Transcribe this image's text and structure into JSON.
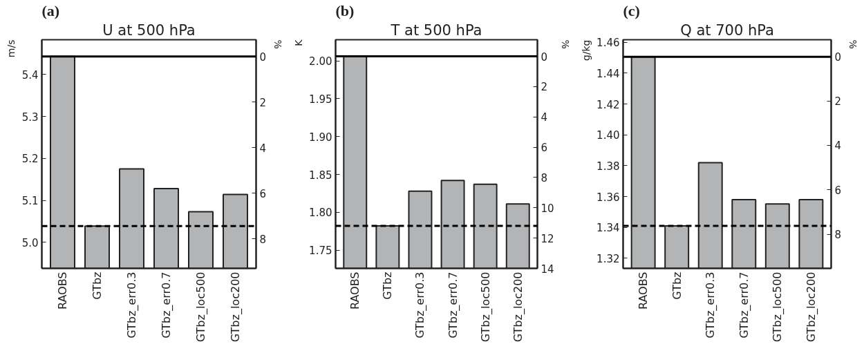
{
  "chart_data": [
    {
      "type": "bar",
      "title": "U at 500 hPa",
      "annotations": [
        "(a)"
      ],
      "ylabel": "m/s",
      "y2label": "%",
      "categories": [
        "RAOBS",
        "GTbz",
        "GTbz_err0.3",
        "GTbz_err0.7",
        "GTbz_loc500",
        "GTbz_loc200"
      ],
      "values": [
        5.443,
        5.039,
        5.175,
        5.128,
        5.073,
        5.114
      ],
      "color": "#b3b4b6",
      "ylim": [
        4.938,
        5.483
      ],
      "yticks": [
        {
          "value": 5.0,
          "label": "5.0"
        },
        5.1,
        5.2,
        5.3,
        5.4
      ],
      "y2lim": [
        9.29,
        -0.73
      ],
      "y2ticks": [
        0,
        2,
        4,
        6,
        8
      ],
      "ref_lines": [
        {
          "axis": "y",
          "value": 5.443,
          "line_style": "solid",
          "color": "#000000"
        },
        {
          "axis": "y",
          "value": 5.039,
          "line_style": "dashed",
          "color": "#000000"
        }
      ],
      "grid": false
    },
    {
      "type": "bar",
      "title": "T at 500 hPa",
      "annotations": [
        "(b)"
      ],
      "ylabel": "K",
      "y2label": "%",
      "categories": [
        "RAOBS",
        "GTbz",
        "GTbz_err0.3",
        "GTbz_err0.7",
        "GTbz_loc500",
        "GTbz_loc200"
      ],
      "values": [
        2.006,
        1.782,
        1.828,
        1.842,
        1.837,
        1.811
      ],
      "color": "#b3b4b6",
      "ylim": [
        1.726,
        2.028
      ],
      "yticks": [
        {
          "value": 1.75,
          "label": "1.75"
        },
        {
          "value": 1.8,
          "label": "1.80"
        },
        {
          "value": 1.85,
          "label": "1.85"
        },
        {
          "value": 1.9,
          "label": "1.90"
        },
        {
          "value": 1.95,
          "label": "1.95"
        },
        {
          "value": 2.0,
          "label": "2.00"
        }
      ],
      "y2lim": [
        14.0,
        -1.1
      ],
      "y2ticks": [
        0,
        2,
        4,
        6,
        8,
        10,
        12,
        14
      ],
      "ref_lines": [
        {
          "axis": "y",
          "value": 2.006,
          "line_style": "solid",
          "color": "#000000"
        },
        {
          "axis": "y",
          "value": 1.782,
          "line_style": "dashed",
          "color": "#000000"
        }
      ],
      "grid": false
    },
    {
      "type": "bar",
      "title": "Q at 700 hPa",
      "annotations": [
        "(c)"
      ],
      "ylabel": "g/kg",
      "y2label": "%",
      "categories": [
        "RAOBS",
        "GTbz",
        "GTbz_err0.3",
        "GTbz_err0.7",
        "GTbz_loc500",
        "GTbz_loc200"
      ],
      "values": [
        1.4506,
        1.341,
        1.382,
        1.358,
        1.3553,
        1.358
      ],
      "color": "#b3b4b6",
      "ylim": [
        1.3135,
        1.4617
      ],
      "yticks": [
        {
          "value": 1.32,
          "label": "1.32"
        },
        {
          "value": 1.34,
          "label": "1.34"
        },
        {
          "value": 1.36,
          "label": "1.36"
        },
        {
          "value": 1.38,
          "label": "1.38"
        },
        {
          "value": 1.4,
          "label": "1.40"
        },
        {
          "value": 1.42,
          "label": "1.42"
        },
        {
          "value": 1.44,
          "label": "1.44"
        },
        {
          "value": 1.46,
          "label": "1.46"
        }
      ],
      "y2lim": [
        9.53,
        -0.75
      ],
      "y2ticks": [
        0,
        2,
        4,
        6,
        8
      ],
      "ref_lines": [
        {
          "axis": "y",
          "value": 1.4506,
          "line_style": "solid",
          "color": "#000000"
        },
        {
          "axis": "y",
          "value": 1.341,
          "line_style": "dashed",
          "color": "#000000"
        }
      ],
      "grid": false
    }
  ]
}
